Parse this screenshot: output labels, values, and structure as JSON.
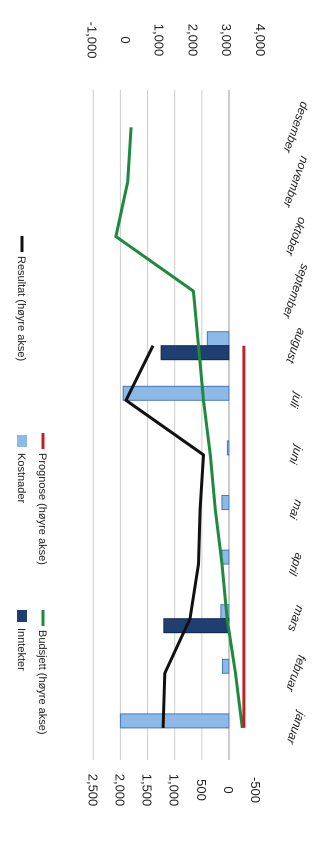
{
  "chart_data": {
    "type": "bar",
    "categories": [
      "januar",
      "februar",
      "mars",
      "april",
      "mai",
      "juni",
      "juli",
      "august",
      "september",
      "oktober",
      "november",
      "desember"
    ],
    "left_axis": {
      "ticks": [
        "2,500",
        "2,000",
        "1,500",
        "1,000",
        "500",
        "0",
        "-500"
      ],
      "range": [
        -500,
        2500
      ]
    },
    "right_axis": {
      "ticks": [
        "-1,000",
        "0",
        "1,000",
        "2,000",
        "3,000",
        "4,000"
      ],
      "range": [
        -1000,
        4000
      ]
    },
    "grid": true,
    "legend_placement": "left",
    "series": [
      {
        "name": "Inntekter",
        "kind": "bar",
        "axis": "left",
        "color": "#1f3f73",
        "values": [
          0,
          0,
          1200,
          0,
          0,
          0,
          0,
          1250,
          0,
          0,
          0,
          0
        ]
      },
      {
        "name": "Kostnader",
        "kind": "bar",
        "axis": "left",
        "color": "#8cb9e8",
        "values": [
          2000,
          120,
          150,
          130,
          130,
          30,
          1950,
          400,
          0,
          0,
          0,
          0
        ]
      },
      {
        "name": "Resultat (høyre akse)",
        "kind": "line",
        "axis": "right",
        "color": "#111111",
        "values": [
          1100,
          1150,
          1900,
          2150,
          2200,
          2300,
          0,
          800,
          null,
          null,
          null,
          null
        ]
      },
      {
        "name": "Budsjett (høyre akse)",
        "kind": "line",
        "axis": "right",
        "color": "#1e8a3e",
        "values": [
          3450,
          3250,
          3000,
          2850,
          2650,
          2500,
          2300,
          2150,
          2000,
          -300,
          50,
          150
        ]
      },
      {
        "name": "Prognose (høyre akse)",
        "kind": "line",
        "axis": "right",
        "color": "#c0202a",
        "values": [
          3500,
          3500,
          3500,
          3500,
          3500,
          3500,
          3500,
          3500,
          null,
          null,
          null,
          null
        ]
      }
    ]
  },
  "colors": {
    "grid": "#cccccc",
    "axis": "#999999"
  }
}
